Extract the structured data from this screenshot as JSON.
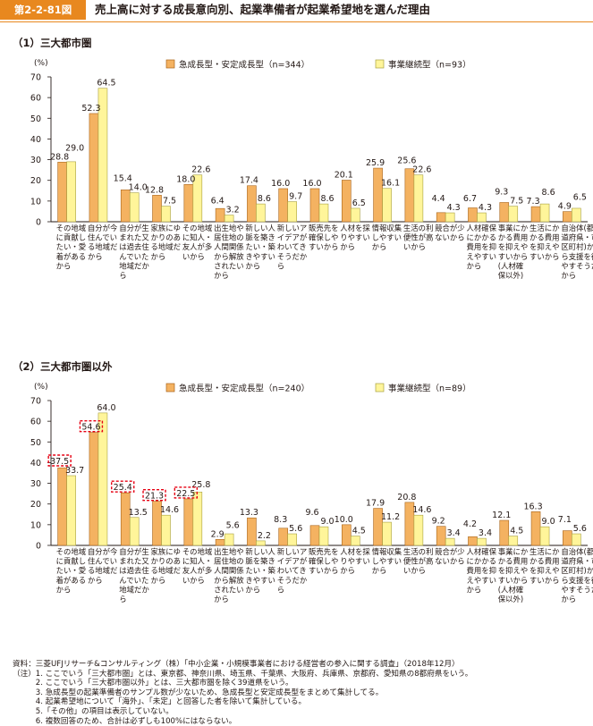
{
  "header": {
    "figure_no": "第2-2-81図",
    "title": "売上高に対する成長意向別、起業準備者が起業希望地を選んだ理由"
  },
  "colors": {
    "series1": "#f4b261",
    "series1_edge": "#a8641a",
    "series2": "#fff59a",
    "series2_edge": "#a8a040",
    "accent": "#e8881f",
    "highlight_box": "#e60012"
  },
  "chart_data": [
    {
      "type": "bar",
      "title": "（1）三大都市圏",
      "unit_label": "(%)",
      "ylim": [
        0,
        70
      ],
      "yticks": [
        0,
        10,
        20,
        30,
        40,
        50,
        60,
        70
      ],
      "legend_position": "top-right",
      "categories": [
        [
          "その地域",
          "に貢献し",
          "たい・愛",
          "着がある",
          "から"
        ],
        [
          "自分が今",
          "住んでい",
          "る地域だ",
          "から"
        ],
        [
          "自分が生",
          "まれた又",
          "は過去住",
          "んでいた",
          "地域だか",
          "ら"
        ],
        [
          "家族にゆ",
          "かりのあ",
          "る地域だ",
          "から"
        ],
        [
          "その地域",
          "に知人・",
          "友人が多",
          "いから"
        ],
        [
          "出生地や",
          "居住地の",
          "人間関係",
          "から解放",
          "されたい",
          "から"
        ],
        [
          "新しい人",
          "脈を築き",
          "たい・築",
          "きやすい",
          "から"
        ],
        [
          "新しいア",
          "イデアが",
          "わいてき",
          "そうだか",
          "ら"
        ],
        [
          "販売先を",
          "確保しや",
          "すいから"
        ],
        [
          "人材を採",
          "りやすい",
          "から"
        ],
        [
          "情報収集",
          "しやすい",
          "から"
        ],
        [
          "生活の利",
          "便性が高",
          "いから"
        ],
        [
          "競合が少",
          "ないから"
        ],
        [
          "人材確保",
          "にかかる",
          "費用を抑",
          "えやすい",
          "から"
        ],
        [
          "事業にか",
          "かる費用",
          "を抑えや",
          "すいから",
          "(人材確",
          "保以外)"
        ],
        [
          "生活にか",
          "かる費用",
          "を抑えや",
          "すいから"
        ],
        [
          "自治体(都",
          "道府県・市",
          "区町村)か",
          "ら支援を得",
          "やすそうだ",
          "から"
        ]
      ],
      "series": [
        {
          "name": "急成長型・安定成長型（n=344）",
          "values": [
            28.8,
            52.3,
            15.4,
            12.8,
            18.0,
            6.4,
            17.4,
            16.0,
            16.0,
            20.1,
            25.9,
            25.6,
            4.4,
            6.7,
            9.3,
            7.3,
            4.9
          ]
        },
        {
          "name": "事業継続型（n=93）",
          "values": [
            29.0,
            64.5,
            14.0,
            7.5,
            22.6,
            3.2,
            8.6,
            9.7,
            8.6,
            6.5,
            16.1,
            22.6,
            4.3,
            4.3,
            7.5,
            8.6,
            6.5
          ]
        }
      ],
      "highlighted_series1_indices": []
    },
    {
      "type": "bar",
      "title": "（2）三大都市圏以外",
      "unit_label": "(%)",
      "ylim": [
        0,
        70
      ],
      "yticks": [
        0,
        10,
        20,
        30,
        40,
        50,
        60,
        70
      ],
      "legend_position": "top-right",
      "categories": [
        [
          "その地域",
          "に貢献し",
          "たい・愛",
          "着がある",
          "から"
        ],
        [
          "自分が今",
          "住んでい",
          "る地域だ",
          "から"
        ],
        [
          "自分が生",
          "まれた又",
          "は過去住",
          "んでいた",
          "地域だか",
          "ら"
        ],
        [
          "家族にゆ",
          "かりのあ",
          "る地域だ",
          "から"
        ],
        [
          "その地域",
          "に知人・",
          "友人が多",
          "いから"
        ],
        [
          "出生地や",
          "居住地の",
          "人間関係",
          "から解放",
          "されたい",
          "から"
        ],
        [
          "新しい人",
          "脈を築き",
          "たい・築",
          "きやすい",
          "から"
        ],
        [
          "新しいア",
          "イデアが",
          "わいてき",
          "そうだか",
          "ら"
        ],
        [
          "販売先を",
          "確保しや",
          "すいから"
        ],
        [
          "人材を採",
          "りやすい",
          "から"
        ],
        [
          "情報収集",
          "しやすい",
          "から"
        ],
        [
          "生活の利",
          "便性が高",
          "いから"
        ],
        [
          "競合が少",
          "ないから"
        ],
        [
          "人材確保",
          "にかかる",
          "費用を抑",
          "えやすい",
          "から"
        ],
        [
          "事業にか",
          "かる費用",
          "を抑えや",
          "すいから",
          "(人材確",
          "保以外)"
        ],
        [
          "生活にか",
          "かる費用",
          "を抑えや",
          "すいから"
        ],
        [
          "自治体(都",
          "道府県・市",
          "区町村)か",
          "ら支援を得",
          "やすそうだ",
          "から"
        ]
      ],
      "series": [
        {
          "name": "急成長型・安定成長型（n=240）",
          "values": [
            37.5,
            54.6,
            25.4,
            21.3,
            22.5,
            2.9,
            13.3,
            8.3,
            9.6,
            10.0,
            17.9,
            20.8,
            9.2,
            4.2,
            12.1,
            16.3,
            7.1
          ]
        },
        {
          "name": "事業継続型（n=89）",
          "values": [
            33.7,
            64.0,
            13.5,
            14.6,
            25.8,
            5.6,
            2.2,
            5.6,
            9.0,
            4.5,
            11.2,
            14.6,
            3.4,
            3.4,
            4.5,
            9.0,
            5.6
          ]
        }
      ],
      "highlighted_series1_indices": [
        0,
        1,
        2,
        3,
        4
      ]
    }
  ],
  "notes": [
    "資料：三菱UFJリサーチ&コンサルティング（株）「中小企業・小規模事業者における経営者の参入に関する調査」（2018年12月）",
    "（注）1. ここでいう「三大都市圏」とは、東京都、神奈川県、埼玉県、千葉県、大阪府、兵庫県、京都府、愛知県の8都府県をいう。",
    "　　　2. ここでいう「三大都市圏以外」とは、三大都市圏を除く39道県をいう。",
    "　　　3. 急成長型の起業準備者のサンプル数が少ないため、急成長型と安定成長型をまとめて集計してる。",
    "　　　4. 起業希望地について「海外」、「未定」と回答した者を除いて集計している。",
    "　　　5.「その他」の項目は表示していない。",
    "　　　6. 複数回答のため、合計は必ずしも100%にはならない。"
  ]
}
